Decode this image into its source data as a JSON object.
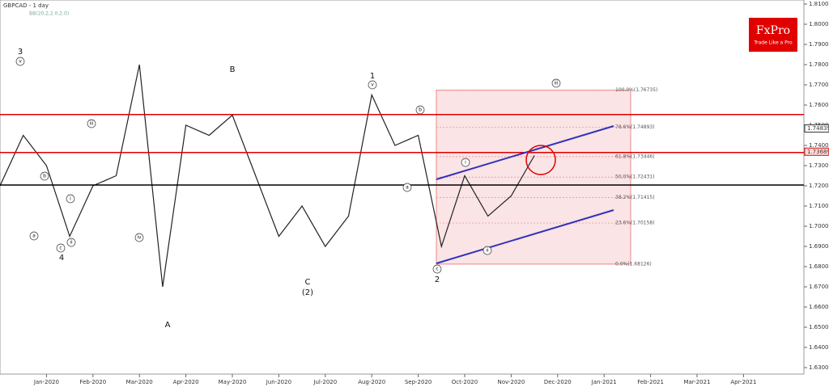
{
  "chart_data": {
    "type": "line",
    "title": "GBPCAD - 1 day",
    "subtitle": "BB(20,2,2.0,2.0)",
    "brand": "FxPro",
    "brand_tagline": "Trade Like a Pro",
    "categories": [
      null,
      null,
      "Jan-2020",
      null,
      "Feb-2020",
      null,
      "Mar-2020",
      null,
      "Apr-2020",
      null,
      "May-2020",
      null,
      "Jun-2020",
      null,
      "Jul-2020",
      null,
      "Aug-2020",
      null,
      "Sep-2020",
      null,
      "Oct-2020",
      null,
      "Nov-2020",
      null,
      "Dec-2020",
      null,
      "Jan-2021",
      null,
      "Feb-2021",
      null,
      "Mar-2021",
      null,
      "Apr-2021",
      null
    ],
    "series": [
      {
        "name": "GBPCAD",
        "color": "#222222",
        "values": [
          1.72,
          1.745,
          1.73,
          1.695,
          1.72,
          1.725,
          1.78,
          1.67,
          1.75,
          1.745,
          1.755,
          1.725,
          1.695,
          1.71,
          1.69,
          1.705,
          1.765,
          1.74,
          1.745,
          1.69,
          1.725,
          1.705,
          1.715,
          1.735,
          null,
          null,
          null,
          null,
          null,
          null,
          null,
          null,
          null,
          null
        ]
      }
    ],
    "ylim": [
      1.63,
      1.81
    ],
    "yticks": [
      {
        "value": 1.63,
        "label": "1.63000"
      },
      {
        "value": 1.64,
        "label": "1.64000"
      },
      {
        "value": 1.65,
        "label": "1.65000"
      },
      {
        "value": 1.66,
        "label": "1.66000"
      },
      {
        "value": 1.67,
        "label": "1.67000"
      },
      {
        "value": 1.68,
        "label": "1.68000"
      },
      {
        "value": 1.69,
        "label": "1.69000"
      },
      {
        "value": 1.7,
        "label": "1.70000"
      },
      {
        "value": 1.71,
        "label": "1.71000"
      },
      {
        "value": 1.72,
        "label": "1.72000"
      },
      {
        "value": 1.73,
        "label": "1.73000"
      },
      {
        "value": 1.74,
        "label": "1.74000"
      },
      {
        "value": 1.75,
        "label": "1.75000"
      },
      {
        "value": 1.76,
        "label": "1.76000"
      },
      {
        "value": 1.77,
        "label": "1.77000"
      },
      {
        "value": 1.78,
        "label": "1.78000"
      },
      {
        "value": 1.79,
        "label": "1.79000"
      },
      {
        "value": 1.8,
        "label": "1.80000"
      },
      {
        "value": 1.81,
        "label": "1.81000"
      }
    ],
    "levels": [
      {
        "value": 1.7553,
        "color": "#e00000"
      },
      {
        "value": 1.7365,
        "color": "#e00000"
      },
      {
        "value": 1.7204,
        "color": "#000000"
      }
    ],
    "price_tags": [
      {
        "value": 1.74839,
        "label": "1.74839"
      },
      {
        "value": 1.73689,
        "label": "1.73689"
      }
    ],
    "fib_levels": [
      {
        "value": 1.76735,
        "label": "100.0%(1.76735)"
      },
      {
        "value": 1.74893,
        "label": "78.6%(1.74893)"
      },
      {
        "value": 1.73446,
        "label": "61.8%(1.73446)"
      },
      {
        "value": 1.72431,
        "label": "50.0%(1.72431)"
      },
      {
        "value": 1.71415,
        "label": "38.2%(1.71415)"
      },
      {
        "value": 1.70158,
        "label": "23.6%(1.70158)"
      },
      {
        "value": 1.68126,
        "label": "0.0%(1.68126)"
      }
    ],
    "annotations": [
      "3",
      "v",
      "b",
      "a",
      "c",
      "4",
      "iii",
      "i",
      "ii",
      "iv",
      "A",
      "B",
      "C",
      "(2)",
      "1",
      "v",
      "b",
      "a",
      "c",
      "2",
      "i",
      "ii",
      "iii"
    ]
  }
}
